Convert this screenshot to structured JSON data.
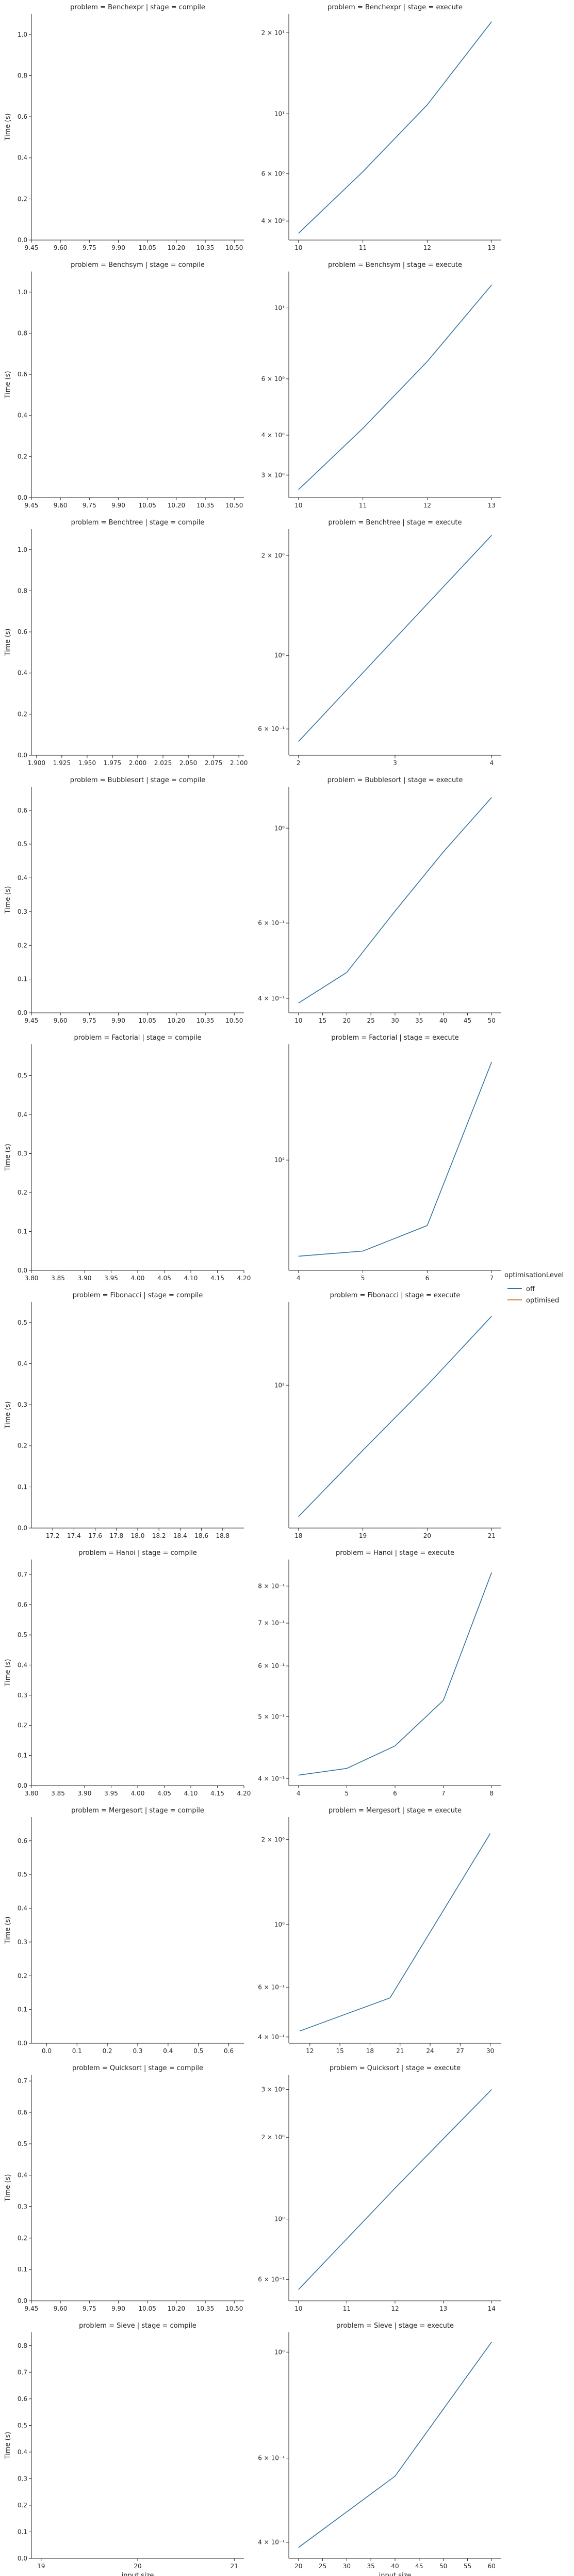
{
  "legend": {
    "title": "optimisationLevel",
    "entries": [
      {
        "label": "off",
        "color": "#3274a1"
      },
      {
        "label": "optimised",
        "color": "#e1812c"
      }
    ],
    "placement": "right-center"
  },
  "figure": {
    "xlabel": "input size",
    "ylabel": "Time (s)"
  },
  "chart_data": [
    {
      "type": "line",
      "title": "problem = Benchexpr | stage = compile",
      "xlabel": "",
      "ylabel": "Time (s)",
      "xticks": [
        "9.45",
        "9.60",
        "9.75",
        "9.90",
        "10.05",
        "10.20",
        "10.35",
        "10.50"
      ],
      "xlim": [
        9.45,
        10.55
      ],
      "yticks": [
        "0.0",
        "0.2",
        "0.4",
        "0.6",
        "0.8",
        "1.0"
      ],
      "ylim": [
        0,
        1.1
      ],
      "series": []
    },
    {
      "type": "line",
      "title": "problem = Benchexpr | stage = execute",
      "ylog": true,
      "xticks": [
        "10",
        "11",
        "12",
        "13"
      ],
      "xlim": [
        9.85,
        13.15
      ],
      "yticks": [
        "4 × 10⁰",
        "6 × 10⁰",
        "10¹",
        "2 × 10¹"
      ],
      "ytick_values": [
        4,
        6,
        10,
        20
      ],
      "ylim": [
        3.4,
        23.5
      ],
      "series": [
        {
          "name": "off",
          "color": "#3274a1",
          "x": [
            10,
            11,
            12,
            13
          ],
          "y": [
            3.6,
            6.1,
            10.8,
            22
          ]
        }
      ]
    },
    {
      "type": "line",
      "title": "problem = Benchsym | stage = compile",
      "xlabel": "",
      "ylabel": "Time (s)",
      "xticks": [
        "9.45",
        "9.60",
        "9.75",
        "9.90",
        "10.05",
        "10.20",
        "10.35",
        "10.50"
      ],
      "xlim": [
        9.45,
        10.55
      ],
      "yticks": [
        "0.0",
        "0.2",
        "0.4",
        "0.6",
        "0.8",
        "1.0"
      ],
      "ylim": [
        0,
        1.1
      ],
      "series": []
    },
    {
      "type": "line",
      "title": "problem = Benchsym | stage = execute",
      "ylog": true,
      "xticks": [
        "10",
        "11",
        "12",
        "13"
      ],
      "xlim": [
        9.85,
        13.15
      ],
      "yticks": [
        "3 × 10⁰",
        "4 × 10⁰",
        "6 × 10⁰",
        "10¹"
      ],
      "ytick_values": [
        3,
        4,
        6,
        10
      ],
      "ylim": [
        2.55,
        13.0
      ],
      "series": [
        {
          "name": "off",
          "color": "#3274a1",
          "x": [
            10,
            11,
            12,
            13
          ],
          "y": [
            2.7,
            4.2,
            6.8,
            11.8
          ]
        }
      ]
    },
    {
      "type": "line",
      "title": "problem = Benchtree | stage = compile",
      "xlabel": "",
      "ylabel": "Time (s)",
      "xticks": [
        "1.900",
        "1.925",
        "1.950",
        "1.975",
        "2.000",
        "2.025",
        "2.050",
        "2.075",
        "2.100"
      ],
      "xlim": [
        1.895,
        2.105
      ],
      "yticks": [
        "0.0",
        "0.2",
        "0.4",
        "0.6",
        "0.8",
        "1.0"
      ],
      "ylim": [
        0,
        1.1
      ],
      "series": []
    },
    {
      "type": "line",
      "title": "problem = Benchtree | stage = execute",
      "ylog": true,
      "xticks": [
        "2",
        "3",
        "4"
      ],
      "xlim": [
        1.9,
        4.1
      ],
      "yticks": [
        "6 × 10⁻¹",
        "10⁰",
        "2 × 10⁰"
      ],
      "ytick_values": [
        0.6,
        1,
        2
      ],
      "ylim": [
        0.5,
        2.4
      ],
      "series": [
        {
          "name": "off",
          "color": "#3274a1",
          "x": [
            2,
            4
          ],
          "y": [
            0.55,
            2.3
          ]
        }
      ]
    },
    {
      "type": "line",
      "title": "problem = Bubblesort | stage = compile",
      "xlabel": "",
      "ylabel": "Time (s)",
      "xticks": [
        "9.45",
        "9.60",
        "9.75",
        "9.90",
        "10.05",
        "10.20",
        "10.35",
        "10.50"
      ],
      "xlim": [
        9.45,
        10.55
      ],
      "yticks": [
        "0.0",
        "0.1",
        "0.2",
        "0.3",
        "0.4",
        "0.5",
        "0.6"
      ],
      "ylim": [
        0,
        0.67
      ],
      "series": []
    },
    {
      "type": "line",
      "title": "problem = Bubblesort | stage = execute",
      "ylog": true,
      "xticks": [
        "10",
        "15",
        "20",
        "25",
        "30",
        "35",
        "40",
        "45",
        "50"
      ],
      "xlim": [
        8,
        52
      ],
      "yticks": [
        "4 × 10⁻¹",
        "6 × 10⁻¹",
        "10⁰"
      ],
      "ytick_values": [
        0.4,
        0.6,
        1
      ],
      "ylim": [
        0.37,
        1.25
      ],
      "series": [
        {
          "name": "off",
          "color": "#3274a1",
          "x": [
            10,
            20,
            30,
            40,
            50
          ],
          "y": [
            0.39,
            0.46,
            0.64,
            0.88,
            1.18
          ]
        }
      ]
    },
    {
      "type": "line",
      "title": "problem = Factorial | stage = compile",
      "xlabel": "",
      "ylabel": "Time (s)",
      "xticks": [
        "3.80",
        "3.85",
        "3.90",
        "3.95",
        "4.00",
        "4.05",
        "4.10",
        "4.15",
        "4.20"
      ],
      "xlim": [
        3.8,
        4.2
      ],
      "yticks": [
        "0.0",
        "0.1",
        "0.2",
        "0.3",
        "0.4",
        "0.5"
      ],
      "ylim": [
        0,
        0.58
      ],
      "series": []
    },
    {
      "type": "line",
      "title": "problem = Factorial | stage = execute",
      "ylog": true,
      "xticks": [
        "4",
        "5",
        "6",
        "7"
      ],
      "xlim": [
        3.85,
        7.15
      ],
      "yticks": [
        "10²"
      ],
      "ytick_values": [
        100
      ],
      "ylim": [
        28,
        380
      ],
      "series": [
        {
          "name": "off",
          "color": "#3274a1",
          "x": [
            4,
            5,
            6,
            7
          ],
          "y": [
            33,
            35,
            47,
            310
          ]
        }
      ]
    },
    {
      "type": "line",
      "title": "problem = Fibonacci | stage = compile",
      "xlabel": "",
      "ylabel": "Time (s)",
      "xticks": [
        "17.2",
        "17.4",
        "17.6",
        "17.8",
        "18.0",
        "18.2",
        "18.4",
        "18.6",
        "18.8"
      ],
      "xlim": [
        17.0,
        19.0
      ],
      "yticks": [
        "0.0",
        "0.1",
        "0.2",
        "0.3",
        "0.4",
        "0.5"
      ],
      "ylim": [
        0,
        0.55
      ],
      "series": []
    },
    {
      "type": "line",
      "title": "problem = Fibonacci | stage = execute",
      "ylog": true,
      "xticks": [
        "18",
        "19",
        "20",
        "21"
      ],
      "xlim": [
        17.85,
        21.15
      ],
      "yticks": [
        "10²"
      ],
      "ytick_values": [
        100
      ],
      "ylim": [
        28,
        210
      ],
      "series": [
        {
          "name": "off",
          "color": "#3274a1",
          "x": [
            18,
            19,
            20,
            21
          ],
          "y": [
            31,
            56,
            100,
            185
          ]
        }
      ]
    },
    {
      "type": "line",
      "title": "problem = Hanoi | stage = compile",
      "xlabel": "",
      "ylabel": "Time (s)",
      "xticks": [
        "3.80",
        "3.85",
        "3.90",
        "3.95",
        "4.00",
        "4.05",
        "4.10",
        "4.15",
        "4.20"
      ],
      "xlim": [
        3.8,
        4.2
      ],
      "yticks": [
        "0.0",
        "0.1",
        "0.2",
        "0.3",
        "0.4",
        "0.5",
        "0.6",
        "0.7"
      ],
      "ylim": [
        0,
        0.75
      ],
      "series": []
    },
    {
      "type": "line",
      "title": "problem = Hanoi | stage = execute",
      "ylog": true,
      "xticks": [
        "4",
        "5",
        "6",
        "7",
        "8"
      ],
      "xlim": [
        3.8,
        8.2
      ],
      "yticks": [
        "4 × 10⁻¹",
        "5 × 10⁻¹",
        "6 × 10⁻¹",
        "7 × 10⁻¹",
        "8 × 10⁻¹"
      ],
      "ytick_values": [
        0.4,
        0.5,
        0.6,
        0.7,
        0.8
      ],
      "ylim": [
        0.39,
        0.88
      ],
      "series": [
        {
          "name": "off",
          "color": "#3274a1",
          "x": [
            4,
            5,
            6,
            7,
            8
          ],
          "y": [
            0.405,
            0.415,
            0.45,
            0.53,
            0.84
          ]
        }
      ]
    },
    {
      "type": "line",
      "title": "problem = Mergesort | stage = compile",
      "xlabel": "",
      "ylabel": "Time (s)",
      "xticks": [
        "0.0",
        "0.1",
        "0.2",
        "0.3",
        "0.4",
        "0.5",
        "0.6"
      ],
      "xlim": [
        9.45,
        10.55
      ],
      "yticks": [
        "0.0",
        "0.1",
        "0.2",
        "0.3",
        "0.4",
        "0.5",
        "0.6"
      ],
      "ylim": [
        0,
        0.67
      ],
      "series": [],
      "xtick_values_hidden": true
    },
    {
      "type": "line",
      "title": "problem = Mergesort | stage = execute",
      "ylog": true,
      "xticks": [
        "12",
        "15",
        "18",
        "21",
        "24",
        "27",
        "30"
      ],
      "xlim": [
        9.9,
        31.1
      ],
      "yticks": [
        "4 × 10⁻¹",
        "6 × 10⁻¹",
        "10⁰",
        "2 × 10⁰"
      ],
      "ytick_values": [
        0.4,
        0.6,
        1,
        2
      ],
      "ylim": [
        0.38,
        2.4
      ],
      "series": [
        {
          "name": "off",
          "color": "#3274a1",
          "x": [
            11,
            20,
            30
          ],
          "y": [
            0.42,
            0.55,
            2.1
          ]
        }
      ]
    },
    {
      "type": "line",
      "title": "problem = Quicksort | stage = compile",
      "xlabel": "",
      "ylabel": "Time (s)",
      "xticks": [
        "9.45",
        "9.60",
        "9.75",
        "9.90",
        "10.05",
        "10.20",
        "10.35",
        "10.50"
      ],
      "xlim": [
        9.45,
        10.55
      ],
      "yticks": [
        "0.0",
        "0.1",
        "0.2",
        "0.3",
        "0.4",
        "0.5",
        "0.6",
        "0.7"
      ],
      "ylim": [
        0,
        0.72
      ],
      "series": []
    },
    {
      "type": "line",
      "title": "problem = Quicksort | stage = execute",
      "ylog": true,
      "xticks": [
        "10",
        "11",
        "12",
        "13",
        "14"
      ],
      "xlim": [
        9.8,
        14.2
      ],
      "yticks": [
        "6 × 10⁻¹",
        "10⁰",
        "2 × 10⁰",
        "3 × 10⁰"
      ],
      "ytick_values": [
        0.6,
        1,
        2,
        3
      ],
      "ylim": [
        0.5,
        3.4
      ],
      "series": [
        {
          "name": "off",
          "color": "#3274a1",
          "x": [
            10,
            12,
            14
          ],
          "y": [
            0.55,
            1.3,
            3.0
          ]
        }
      ]
    },
    {
      "type": "line",
      "title": "problem = Sieve | stage = compile",
      "xlabel": "input size",
      "ylabel": "Time (s)",
      "xticks": [
        "19",
        "20",
        "21"
      ],
      "xlim": [
        18.9,
        21.1
      ],
      "yticks": [
        "0.0",
        "0.1",
        "0.2",
        "0.3",
        "0.4",
        "0.5",
        "0.6",
        "0.7",
        "0.8"
      ],
      "ylim": [
        0,
        0.85
      ],
      "series": []
    },
    {
      "type": "line",
      "title": "problem = Sieve | stage = execute",
      "xlabel": "input size",
      "ylog": true,
      "xticks": [
        "20",
        "25",
        "30",
        "35",
        "40",
        "45",
        "50",
        "55",
        "60"
      ],
      "xlim": [
        18,
        62
      ],
      "yticks": [
        "4 × 10⁻¹",
        "6 × 10⁻¹",
        "10⁰"
      ],
      "ytick_values": [
        0.4,
        0.6,
        1
      ],
      "ylim": [
        0.37,
        1.1
      ],
      "series": [
        {
          "name": "off",
          "color": "#3274a1",
          "x": [
            20,
            40,
            60
          ],
          "y": [
            0.39,
            0.55,
            1.05
          ]
        }
      ]
    }
  ]
}
